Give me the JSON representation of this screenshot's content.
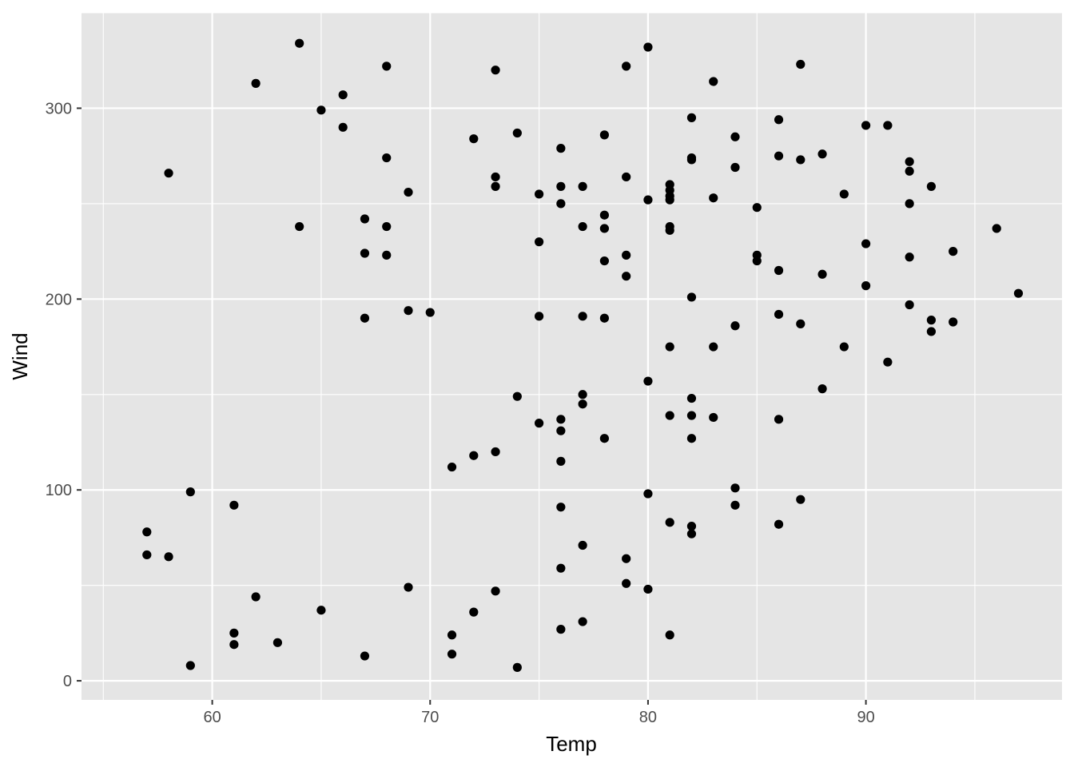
{
  "chart_data": {
    "type": "scatter",
    "xlabel": "Temp",
    "ylabel": "Wind",
    "xlim": [
      54.0,
      99.0
    ],
    "ylim": [
      -10,
      350
    ],
    "x_ticks": [
      60,
      70,
      80,
      90
    ],
    "y_ticks": [
      0,
      100,
      200,
      300
    ],
    "grid": true,
    "legend": "none",
    "colors": {
      "panel": "#e5e5e5",
      "grid": "#ffffff",
      "point": "#000000",
      "tick_text": "#4d4d4d"
    },
    "points": [
      [
        57,
        78
      ],
      [
        57,
        66
      ],
      [
        58,
        266
      ],
      [
        58,
        65
      ],
      [
        59,
        99
      ],
      [
        59,
        8
      ],
      [
        61,
        92
      ],
      [
        61,
        25
      ],
      [
        61,
        19
      ],
      [
        62,
        313
      ],
      [
        62,
        44
      ],
      [
        63,
        20
      ],
      [
        64,
        334
      ],
      [
        64,
        238
      ],
      [
        65,
        299
      ],
      [
        65,
        37
      ],
      [
        66,
        307
      ],
      [
        66,
        290
      ],
      [
        67,
        242
      ],
      [
        67,
        224
      ],
      [
        67,
        190
      ],
      [
        67,
        13
      ],
      [
        68,
        322
      ],
      [
        68,
        274
      ],
      [
        68,
        238
      ],
      [
        68,
        223
      ],
      [
        69,
        256
      ],
      [
        69,
        194
      ],
      [
        69,
        49
      ],
      [
        70,
        193
      ],
      [
        71,
        112
      ],
      [
        71,
        24
      ],
      [
        71,
        14
      ],
      [
        72,
        284
      ],
      [
        72,
        118
      ],
      [
        72,
        36
      ],
      [
        73,
        320
      ],
      [
        73,
        264
      ],
      [
        73,
        259
      ],
      [
        73,
        120
      ],
      [
        73,
        47
      ],
      [
        74,
        287
      ],
      [
        74,
        149
      ],
      [
        74,
        7
      ],
      [
        75,
        255
      ],
      [
        75,
        230
      ],
      [
        75,
        191
      ],
      [
        75,
        135
      ],
      [
        76,
        279
      ],
      [
        76,
        259
      ],
      [
        76,
        250
      ],
      [
        76,
        137
      ],
      [
        76,
        131
      ],
      [
        76,
        115
      ],
      [
        76,
        91
      ],
      [
        76,
        59
      ],
      [
        76,
        27
      ],
      [
        77,
        259
      ],
      [
        77,
        238
      ],
      [
        77,
        191
      ],
      [
        77,
        150
      ],
      [
        77,
        145
      ],
      [
        77,
        71
      ],
      [
        77,
        31
      ],
      [
        78,
        286
      ],
      [
        78,
        244
      ],
      [
        78,
        237
      ],
      [
        78,
        220
      ],
      [
        78,
        190
      ],
      [
        78,
        127
      ],
      [
        79,
        322
      ],
      [
        79,
        264
      ],
      [
        79,
        223
      ],
      [
        79,
        212
      ],
      [
        79,
        64
      ],
      [
        79,
        51
      ],
      [
        80,
        332
      ],
      [
        80,
        252
      ],
      [
        80,
        157
      ],
      [
        80,
        98
      ],
      [
        80,
        48
      ],
      [
        81,
        260
      ],
      [
        81,
        257
      ],
      [
        81,
        254
      ],
      [
        81,
        252
      ],
      [
        81,
        238
      ],
      [
        81,
        236
      ],
      [
        81,
        175
      ],
      [
        81,
        139
      ],
      [
        81,
        83
      ],
      [
        81,
        24
      ],
      [
        82,
        295
      ],
      [
        82,
        274
      ],
      [
        82,
        273
      ],
      [
        82,
        201
      ],
      [
        82,
        148
      ],
      [
        82,
        139
      ],
      [
        82,
        127
      ],
      [
        82,
        81
      ],
      [
        82,
        77
      ],
      [
        83,
        314
      ],
      [
        83,
        253
      ],
      [
        83,
        175
      ],
      [
        83,
        138
      ],
      [
        84,
        285
      ],
      [
        84,
        269
      ],
      [
        84,
        186
      ],
      [
        84,
        101
      ],
      [
        84,
        92
      ],
      [
        85,
        248
      ],
      [
        85,
        223
      ],
      [
        85,
        220
      ],
      [
        86,
        294
      ],
      [
        86,
        275
      ],
      [
        86,
        215
      ],
      [
        86,
        192
      ],
      [
        86,
        137
      ],
      [
        86,
        82
      ],
      [
        87,
        323
      ],
      [
        87,
        273
      ],
      [
        87,
        187
      ],
      [
        87,
        95
      ],
      [
        88,
        276
      ],
      [
        88,
        213
      ],
      [
        88,
        153
      ],
      [
        89,
        255
      ],
      [
        89,
        175
      ],
      [
        90,
        291
      ],
      [
        90,
        229
      ],
      [
        90,
        207
      ],
      [
        91,
        291
      ],
      [
        91,
        167
      ],
      [
        92,
        272
      ],
      [
        92,
        267
      ],
      [
        92,
        250
      ],
      [
        92,
        222
      ],
      [
        92,
        197
      ],
      [
        93,
        259
      ],
      [
        93,
        189
      ],
      [
        93,
        183
      ],
      [
        94,
        225
      ],
      [
        94,
        188
      ],
      [
        96,
        237
      ],
      [
        97,
        203
      ]
    ]
  }
}
